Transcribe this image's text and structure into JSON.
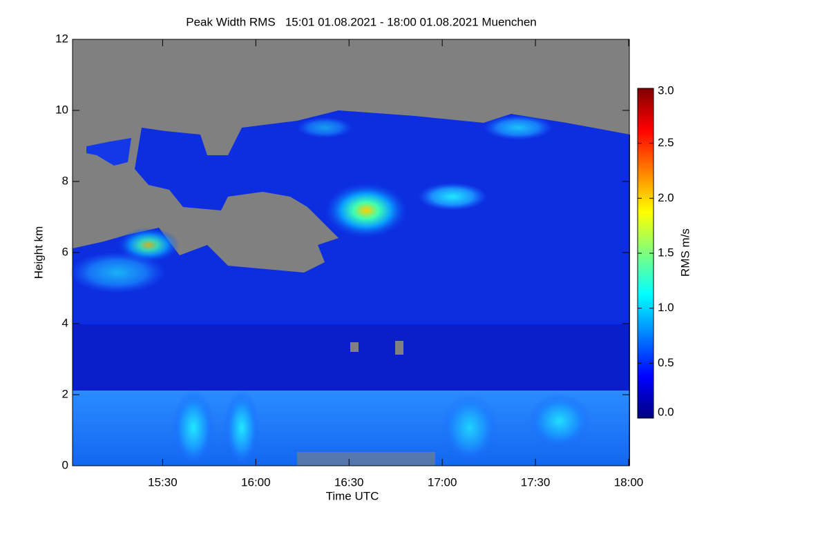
{
  "chart_data": {
    "type": "heatmap",
    "title": "Peak Width RMS   15:01 01.08.2021 - 18:00 01.08.2021 Muenchen",
    "x_label": "Time UTC",
    "y_label": "Height km",
    "xlim": [
      901,
      1080
    ],
    "xticks": [
      {
        "value": 930,
        "label": "15:30"
      },
      {
        "value": 960,
        "label": "16:00"
      },
      {
        "value": 990,
        "label": "16:30"
      },
      {
        "value": 1020,
        "label": "17:00"
      },
      {
        "value": 1050,
        "label": "17:30"
      },
      {
        "value": 1080,
        "label": "18:00"
      }
    ],
    "ylim": [
      0,
      12
    ],
    "yticks": [
      0,
      2,
      4,
      6,
      8,
      10,
      12
    ],
    "colorbar": {
      "label": "RMS m/s",
      "clim": [
        0,
        3
      ],
      "ticks": [
        {
          "value": 0,
          "label": "0.0"
        },
        {
          "value": 0.5,
          "label": "0.5"
        },
        {
          "value": 1,
          "label": "1.0"
        },
        {
          "value": 1.5,
          "label": "1.5"
        },
        {
          "value": 2,
          "label": "2.0"
        },
        {
          "value": 2.5,
          "label": "2.5"
        },
        {
          "value": 3,
          "label": "3.0"
        }
      ],
      "colormap": [
        "#00007f",
        "#0000ff",
        "#007fff",
        "#00ffff",
        "#7fff7f",
        "#ffff00",
        "#ff7f00",
        "#ff0000",
        "#7f0000"
      ]
    }
  }
}
